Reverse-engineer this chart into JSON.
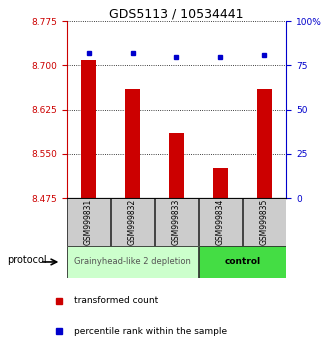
{
  "title": "GDS5113 / 10534441",
  "samples": [
    "GSM999831",
    "GSM999832",
    "GSM999833",
    "GSM999834",
    "GSM999835"
  ],
  "bar_values": [
    8.71,
    8.66,
    8.585,
    8.527,
    8.66
  ],
  "percentile_values": [
    82,
    82,
    80,
    80,
    81
  ],
  "ylim_left": [
    8.475,
    8.775
  ],
  "ylim_right": [
    0,
    100
  ],
  "yticks_left": [
    8.475,
    8.55,
    8.625,
    8.7,
    8.775
  ],
  "yticks_right": [
    0,
    25,
    50,
    75,
    100
  ],
  "ytick_right_labels": [
    "0",
    "25",
    "50",
    "75",
    "100%"
  ],
  "bar_color": "#cc0000",
  "dot_color": "#0000cc",
  "bar_bottom": 8.475,
  "group1_label": "Grainyhead-like 2 depletion",
  "group2_label": "control",
  "group1_color": "#ccffcc",
  "group2_color": "#44dd44",
  "protocol_label": "protocol",
  "legend_bar_label": "transformed count",
  "legend_dot_label": "percentile rank within the sample",
  "background_color": "#ffffff",
  "title_fontsize": 9,
  "tick_label_fontsize": 6.5,
  "sample_label_fontsize": 5.5,
  "group_label_fontsize": 6,
  "legend_fontsize": 6.5
}
